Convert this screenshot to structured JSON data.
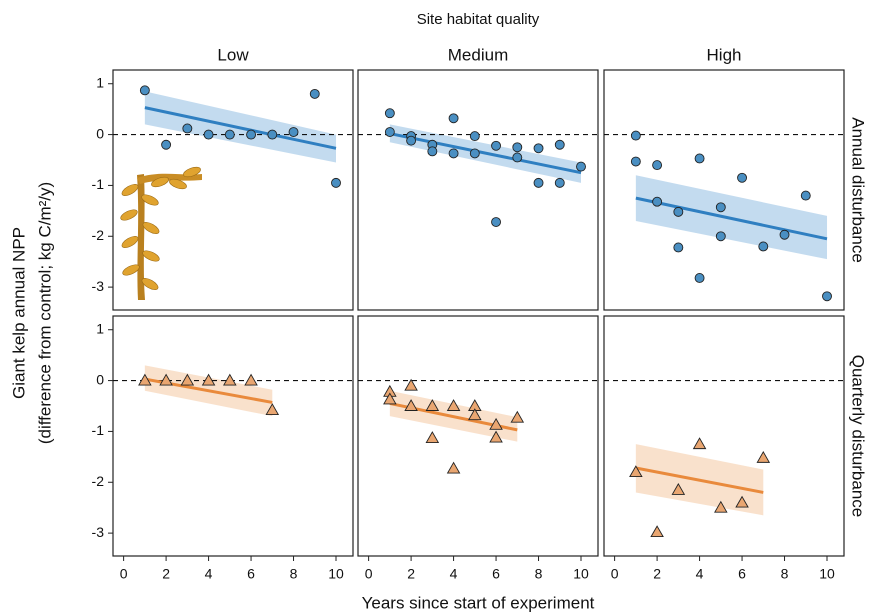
{
  "chart_data": {
    "type": "facet-scatter",
    "title": "Site habitat quality",
    "xlabel": "Years since start of experiment",
    "ylabel": [
      "Giant kelp annual NPP",
      "(difference from control; kg C/m²/y)"
    ],
    "columns": [
      "Low",
      "Medium",
      "High"
    ],
    "rows": [
      {
        "label": "Annual disturbance",
        "marker": "circle",
        "color": "#4a8fc2",
        "line_color": "#2f7fc1",
        "band_color": "#b9d5ec"
      },
      {
        "label": "Quarterly disturbance",
        "marker": "triangle",
        "color": "#e9a671",
        "line_color": "#e98a3c",
        "band_color": "#f8dcc3"
      }
    ],
    "xlim": [
      -0.5,
      10.8
    ],
    "xticks": [
      0,
      2,
      4,
      6,
      8,
      10
    ],
    "ylim": [
      -3.45,
      1.27
    ],
    "yticks": [
      -3,
      -2,
      -1,
      0,
      1
    ],
    "hline": 0,
    "panels": [
      [
        {
          "x": [
            1,
            2,
            3,
            4,
            5,
            6,
            7,
            8,
            9,
            10
          ],
          "y": [
            0.87,
            -0.2,
            0.12,
            0,
            0,
            0,
            0,
            0.05,
            0.8,
            -0.95
          ],
          "fit": {
            "x": [
              1,
              10
            ],
            "y": [
              0.53,
              -0.27
            ],
            "lower": [
              0.2,
              -0.55
            ],
            "upper": [
              0.85,
              0.0
            ]
          }
        },
        {
          "x": [
            1,
            1,
            2,
            2,
            3,
            3,
            4,
            4,
            5,
            5,
            6,
            6,
            7,
            7,
            8,
            8,
            9,
            9,
            10
          ],
          "y": [
            0.42,
            0.05,
            -0.03,
            -0.12,
            -0.2,
            -0.33,
            0.32,
            -0.37,
            -0.03,
            -0.37,
            -0.22,
            -1.72,
            -0.25,
            -0.45,
            -0.27,
            -0.95,
            -0.2,
            -0.95,
            -0.63
          ],
          "fit": {
            "x": [
              1,
              10
            ],
            "y": [
              0.02,
              -0.75
            ],
            "lower": [
              -0.15,
              -0.95
            ],
            "upper": [
              0.2,
              -0.55
            ]
          }
        },
        {
          "x": [
            1,
            1,
            2,
            2,
            3,
            3,
            4,
            4,
            5,
            5,
            6,
            7,
            8,
            9,
            10
          ],
          "y": [
            -0.02,
            -0.53,
            -0.6,
            -1.32,
            -1.52,
            -2.22,
            -0.47,
            -2.82,
            -1.43,
            -2.0,
            -0.85,
            -2.2,
            -1.97,
            -1.2,
            -3.18
          ],
          "fit": {
            "x": [
              1,
              10
            ],
            "y": [
              -1.25,
              -2.05
            ],
            "lower": [
              -1.7,
              -2.45
            ],
            "upper": [
              -0.8,
              -1.6
            ]
          }
        }
      ],
      [
        {
          "x": [
            1,
            2,
            3,
            4,
            5,
            6,
            7
          ],
          "y": [
            0,
            0,
            0,
            0,
            0,
            0,
            -0.58
          ],
          "fit": {
            "x": [
              1,
              7
            ],
            "y": [
              0.03,
              -0.43
            ],
            "lower": [
              -0.2,
              -0.7
            ],
            "upper": [
              0.3,
              -0.18
            ]
          }
        },
        {
          "x": [
            1,
            1,
            2,
            2,
            3,
            3,
            4,
            4,
            5,
            5,
            6,
            6,
            7
          ],
          "y": [
            -0.22,
            -0.37,
            -0.1,
            -0.5,
            -0.5,
            -1.13,
            -0.5,
            -1.73,
            -0.5,
            -0.68,
            -0.87,
            -1.12,
            -0.73
          ],
          "fit": {
            "x": [
              1,
              7
            ],
            "y": [
              -0.45,
              -0.97
            ],
            "lower": [
              -0.7,
              -1.2
            ],
            "upper": [
              -0.2,
              -0.72
            ]
          }
        },
        {
          "x": [
            1,
            2,
            3,
            4,
            5,
            6,
            7
          ],
          "y": [
            -1.8,
            -2.98,
            -2.15,
            -1.25,
            -2.5,
            -2.4,
            -1.52
          ],
          "fit": {
            "x": [
              1,
              7
            ],
            "y": [
              -1.72,
              -2.2
            ],
            "lower": [
              -2.2,
              -2.65
            ],
            "upper": [
              -1.25,
              -1.75
            ]
          }
        }
      ]
    ]
  }
}
